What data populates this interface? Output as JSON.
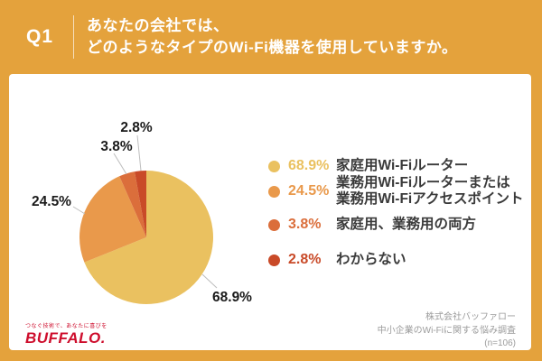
{
  "header": {
    "q_label": "Q1",
    "question_line1": "あなたの会社では、",
    "question_line2": "どのようなタイプのWi-Fi機器を使用していますか。"
  },
  "chart_data": {
    "type": "pie",
    "title": "あなたの会社では、どのようなタイプのWi-Fi機器を使用していますか。",
    "unit": "%",
    "start_angle_deg": -90,
    "direction": "clockwise",
    "legend_position": "right",
    "slices": [
      {
        "label": "家庭用Wi-Fiルーター",
        "value": 68.9,
        "pct_label": "68.9%",
        "color": "#EAC160",
        "legend_lines": [
          "家庭用Wi-Fiルーター"
        ]
      },
      {
        "label": "業務用Wi-Fiルーターまたは業務用Wi-Fiアクセスポイント",
        "value": 24.5,
        "pct_label": "24.5%",
        "color": "#E9994B",
        "legend_lines": [
          "業務用Wi-Fiルーターまたは",
          "業務用Wi-Fiアクセスポイント"
        ]
      },
      {
        "label": "家庭用、業務用の両方",
        "value": 3.8,
        "pct_label": "3.8%",
        "color": "#DB6E3B",
        "legend_lines": [
          "家庭用、業務用の両方"
        ]
      },
      {
        "label": "わからない",
        "value": 2.8,
        "pct_label": "2.8%",
        "color": "#C94A28",
        "legend_lines": [
          "わからない"
        ]
      }
    ]
  },
  "footer": {
    "logo_tagline": "つなぐ技術で、あなたに喜びを",
    "logo_text": "BUFFALO.",
    "source_line1": "株式会社バッファロー",
    "source_line2": "中小企業のWi-Fiに関する悩み調査",
    "source_line3": "(n=106)"
  },
  "colors": {
    "frame_orange": "#E4A23C",
    "card_bg": "#FFFFFF",
    "leader_line": "#BDBDBD",
    "pie_label_text": "#1B1B1B",
    "legend_label_text": "#3A3A3A",
    "footer_text": "#9B9B9B",
    "logo_red": "#CE0E2D"
  }
}
